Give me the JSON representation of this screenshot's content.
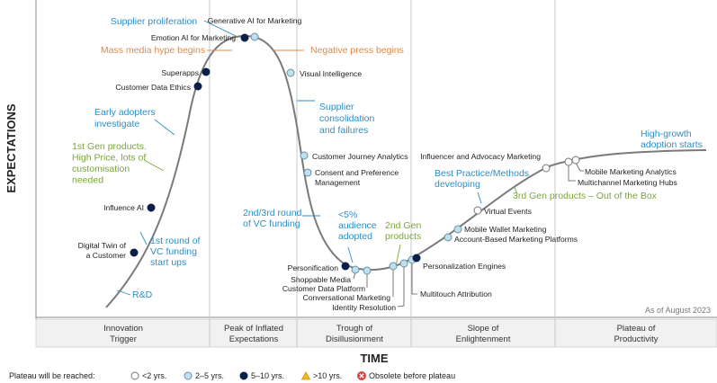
{
  "chart_data": {
    "type": "line",
    "title": "",
    "xlabel": "TIME",
    "ylabel": "EXPECTATIONS",
    "as_of": "As of August 2023",
    "phases": [
      {
        "line1": "Innovation",
        "line2": "Trigger"
      },
      {
        "line1": "Peak of Inflated",
        "line2": "Expectations"
      },
      {
        "line1": "Trough of",
        "line2": "Disillusionment"
      },
      {
        "line1": "Slope of",
        "line2": "Enlightenment"
      },
      {
        "line1": "Plateau of",
        "line2": "Productivity"
      }
    ],
    "legend": {
      "title": "Plateau will be reached:",
      "items": [
        {
          "label": "<2 yrs.",
          "fill": "#ffffff",
          "stroke": "#777777",
          "shape": "circle"
        },
        {
          "label": "2–5 yrs.",
          "fill": "#bfe0ef",
          "stroke": "#6a8fa3",
          "shape": "circle"
        },
        {
          "label": "5–10 yrs.",
          "fill": "#0c1f4a",
          "stroke": "#0c1f4a",
          "shape": "circle"
        },
        {
          "label": ">10 yrs.",
          "fill": "#f2b822",
          "stroke": "#c99600",
          "shape": "triangle"
        },
        {
          "label": "Obsolete before plateau",
          "fill": "#e0443c",
          "stroke": "#c0302a",
          "shape": "xcircle"
        }
      ]
    },
    "technologies": [
      {
        "name": "Digital Twin of a Customer",
        "lines": [
          "Digital Twin of",
          "a Customer"
        ],
        "category": "5–10 yrs."
      },
      {
        "name": "Influence AI",
        "lines": [
          "Influence AI"
        ],
        "category": "5–10 yrs."
      },
      {
        "name": "Customer Data Ethics",
        "lines": [
          "Customer Data Ethics"
        ],
        "category": "5–10 yrs."
      },
      {
        "name": "Superapps",
        "lines": [
          "Superapps"
        ],
        "category": "5–10 yrs."
      },
      {
        "name": "Emotion AI for Marketing",
        "lines": [
          "Emotion AI for Marketing"
        ],
        "category": "5–10 yrs."
      },
      {
        "name": "Generative AI for Marketing",
        "lines": [
          "Generative AI for Marketing"
        ],
        "category": "2–5 yrs."
      },
      {
        "name": "Visual Intelligence",
        "lines": [
          "Visual Intelligence"
        ],
        "category": "2–5 yrs."
      },
      {
        "name": "Customer Journey Analytics",
        "lines": [
          "Customer Journey Analytics"
        ],
        "category": "2–5 yrs."
      },
      {
        "name": "Consent and Preference Management",
        "lines": [
          "Consent and Preference",
          "Management"
        ],
        "category": "2–5 yrs."
      },
      {
        "name": "Personification",
        "lines": [
          "Personification"
        ],
        "category": "5–10 yrs."
      },
      {
        "name": "Shoppable Media",
        "lines": [
          "Shoppable Media"
        ],
        "category": "2–5 yrs."
      },
      {
        "name": "Customer Data Platform",
        "lines": [
          "Customer Data Platform"
        ],
        "category": "2–5 yrs."
      },
      {
        "name": "Conversational Marketing",
        "lines": [
          "Conversational Marketing"
        ],
        "category": "2–5 yrs."
      },
      {
        "name": "Identity Resolution",
        "lines": [
          "Identity Resolution"
        ],
        "category": "2–5 yrs."
      },
      {
        "name": "Multitouch Attribution",
        "lines": [
          "Multitouch Attribution"
        ],
        "category": "2–5 yrs."
      },
      {
        "name": "Personalization Engines",
        "lines": [
          "Personalization Engines"
        ],
        "category": "5–10 yrs."
      },
      {
        "name": "Account-Based Marketing Platforms",
        "lines": [
          "Account-Based Marketing Platforms"
        ],
        "category": "2–5 yrs."
      },
      {
        "name": "Mobile Wallet Marketing",
        "lines": [
          "Mobile Wallet Marketing"
        ],
        "category": "2–5 yrs."
      },
      {
        "name": "Virtual Events",
        "lines": [
          "Virtual Events"
        ],
        "category": "<2 yrs."
      },
      {
        "name": "Influencer and Advocacy Marketing",
        "lines": [
          "Influencer and Advocacy Marketing"
        ],
        "category": "<2 yrs."
      },
      {
        "name": "Multichannel Marketing Hubs",
        "lines": [
          "Multichannel Marketing Hubs"
        ],
        "category": "<2 yrs."
      },
      {
        "name": "Mobile Marketing Analytics",
        "lines": [
          "Mobile Marketing Analytics"
        ],
        "category": "<2 yrs."
      }
    ],
    "annotations": [
      {
        "lines": [
          "Supplier proliferation"
        ],
        "color": "#2f8ec4"
      },
      {
        "lines": [
          "Mass media hype begins"
        ],
        "color": "#e08a4a"
      },
      {
        "lines": [
          "Negative press begins"
        ],
        "color": "#e08a4a"
      },
      {
        "lines": [
          "Early adopters",
          "investigate"
        ],
        "color": "#2f8ec4"
      },
      {
        "lines": [
          "Supplier",
          "consolidation",
          "and failures"
        ],
        "color": "#2f8ec4"
      },
      {
        "lines": [
          "1st Gen products.",
          "High Price, lots of",
          "customisation",
          "needed"
        ],
        "color": "#7aa63c"
      },
      {
        "lines": [
          "2nd/3rd round",
          "of VC funding"
        ],
        "color": "#2f8ec4"
      },
      {
        "lines": [
          "<5%",
          "audience",
          "adopted"
        ],
        "color": "#2f8ec4"
      },
      {
        "lines": [
          "2nd Gen",
          "products"
        ],
        "color": "#7aa63c"
      },
      {
        "lines": [
          "1st round of",
          "VC funding",
          "start ups"
        ],
        "color": "#2f8ec4"
      },
      {
        "lines": [
          "R&D"
        ],
        "color": "#2f8ec4"
      },
      {
        "lines": [
          "Best Practice/Methods",
          "developing"
        ],
        "color": "#2f8ec4"
      },
      {
        "lines": [
          "3rd Gen products – Out of the Box"
        ],
        "color": "#7aa63c"
      },
      {
        "lines": [
          "High-growth",
          "adoption starts"
        ],
        "color": "#2f8ec4"
      }
    ]
  }
}
